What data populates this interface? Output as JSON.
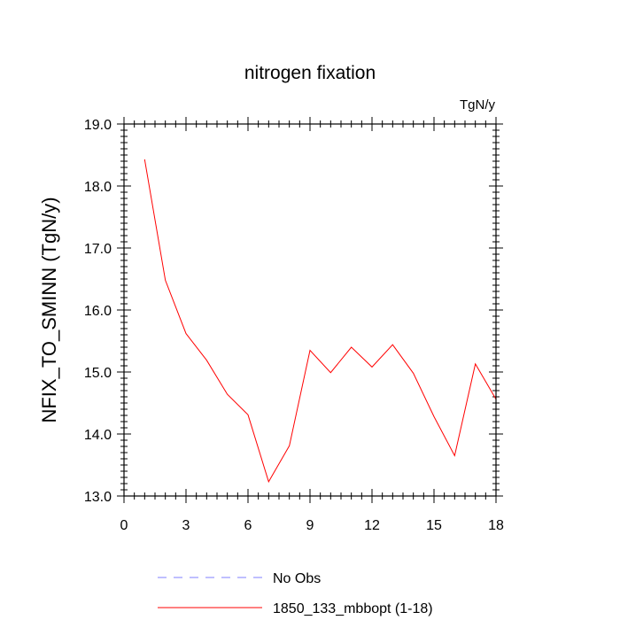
{
  "chart_data": {
    "type": "line",
    "title": "nitrogen fixation",
    "units_label": "TgN/y",
    "xlabel": "",
    "ylabel": "NFIX_TO_SMINN  (TgN/y)",
    "xlim": [
      0,
      18
    ],
    "ylim": [
      13.0,
      19.0
    ],
    "xticks": [
      0,
      3,
      6,
      9,
      12,
      15,
      18
    ],
    "xtick_labels": [
      "0",
      "3",
      "6",
      "9",
      "12",
      "15",
      "18"
    ],
    "yticks": [
      13.0,
      14.0,
      15.0,
      16.0,
      17.0,
      18.0,
      19.0
    ],
    "ytick_labels": [
      "13.0",
      "14.0",
      "15.0",
      "16.0",
      "17.0",
      "18.0",
      "19.0"
    ],
    "grid": false,
    "legend_position": "bottom",
    "series": [
      {
        "name": "No Obs",
        "color": "#7f7fff",
        "style": "dashed",
        "x": [],
        "y": []
      },
      {
        "name": "1850_133_mbbopt (1-18)",
        "color": "#ff0000",
        "style": "solid",
        "x": [
          1,
          2,
          3,
          4,
          5,
          6,
          7,
          8,
          9,
          10,
          11,
          12,
          13,
          14,
          15,
          16,
          17,
          18
        ],
        "y": [
          18.43,
          16.48,
          15.62,
          15.19,
          14.64,
          14.31,
          13.23,
          13.81,
          15.35,
          14.99,
          15.4,
          15.08,
          15.44,
          14.98,
          14.28,
          13.65,
          15.13,
          14.56
        ]
      }
    ]
  }
}
